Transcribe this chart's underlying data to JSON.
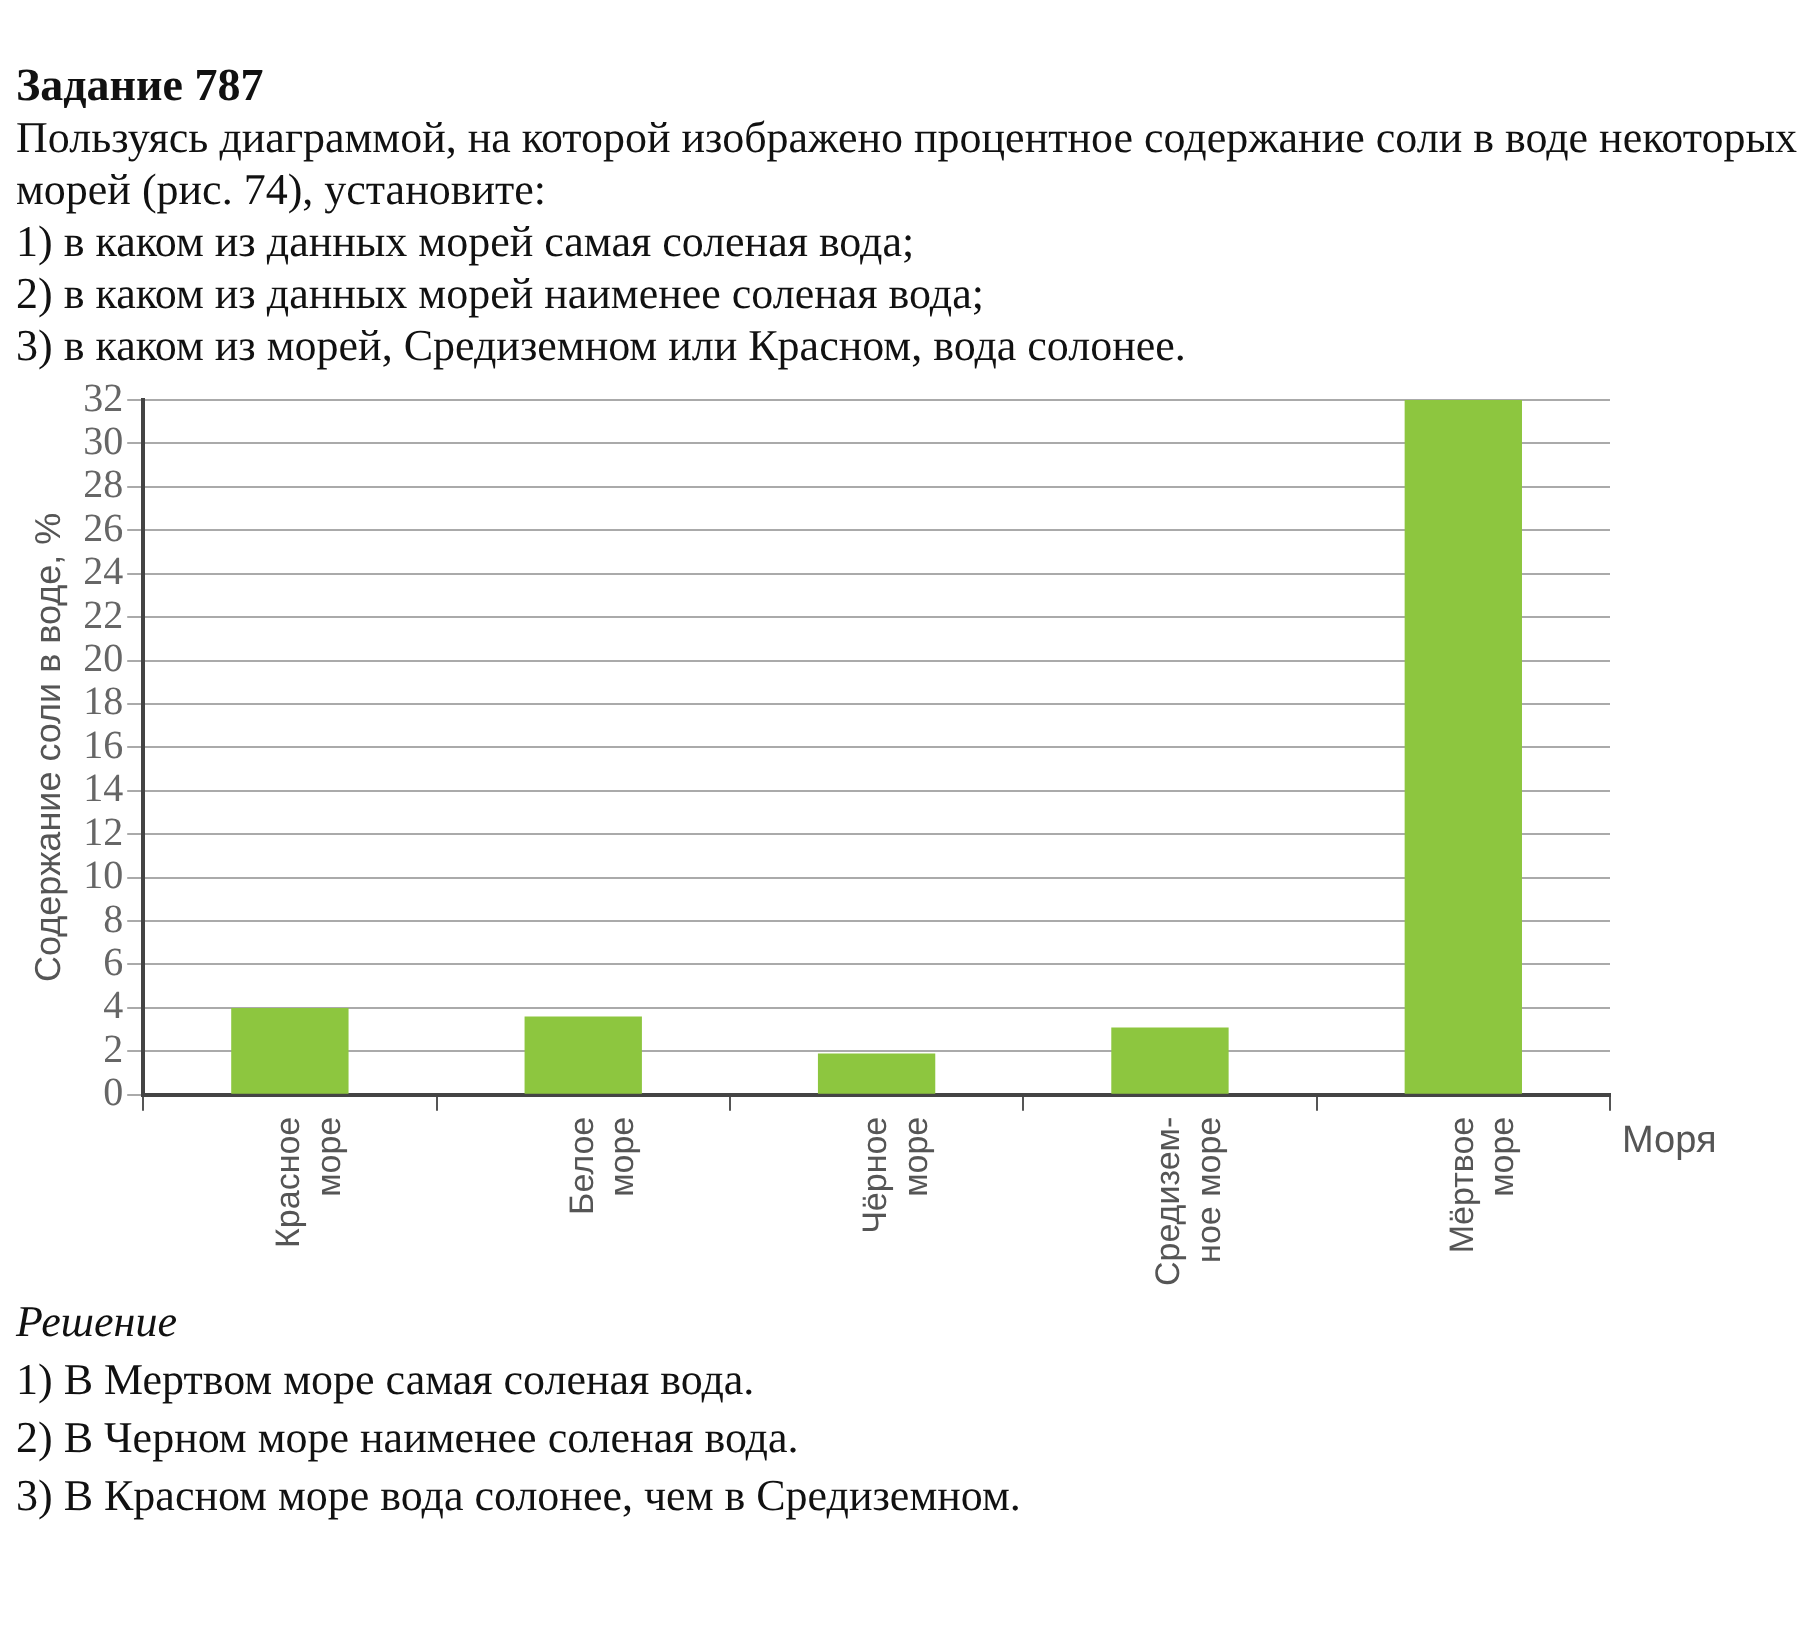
{
  "chart_data": {
    "type": "bar",
    "title": "Задание 787",
    "subtitle": "Пользуясь диаграммой, на которой изображено процентное содержание соли в воде некоторых морей (рис. 74), установите:\n1) в каком из данных морей самая соленая вода;\n2) в каком из данных морей наименее соленая вода;\n3) в каком из морей, Средиземном или Красном, вода солонее.",
    "categories": [
      "Красное\nморе",
      "Белое\nморе",
      "Чёрное\nморе",
      "Средизем-\nное море",
      "Мёртвое\nморе"
    ],
    "values": [
      4,
      3.6,
      1.9,
      3.1,
      32
    ],
    "color": "#8dc63f",
    "xlabel": "Моря",
    "ylabel": "Содержание соли в воде, %",
    "ylim": [
      0,
      32
    ],
    "yticks": [
      0,
      2,
      4,
      6,
      8,
      10,
      12,
      14,
      16,
      18,
      20,
      22,
      24,
      26,
      28,
      30,
      32
    ],
    "grid": "y",
    "legend": false,
    "annotations": [
      "Решение",
      "1) В Мертвом море самая соленая вода.",
      "2) В Черном море наименее соленая вода.",
      "3) В Красном море вода солонее, чем в Средиземном."
    ]
  }
}
